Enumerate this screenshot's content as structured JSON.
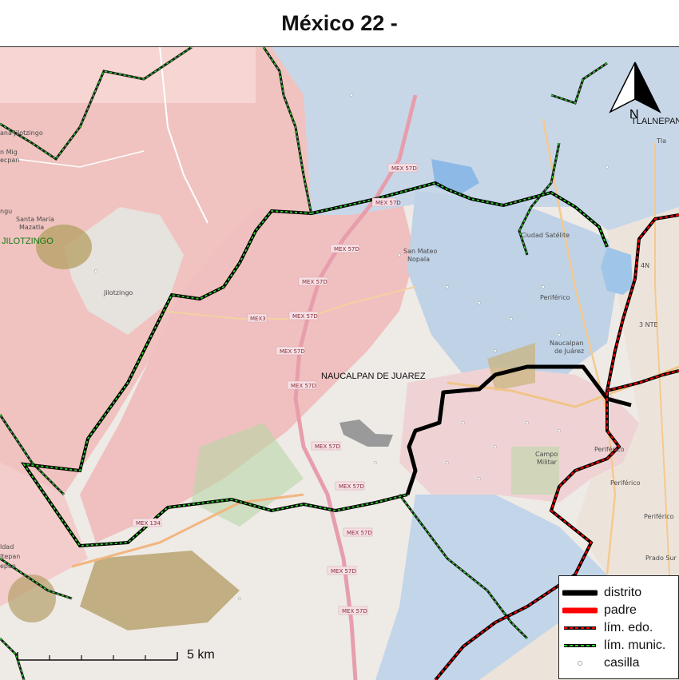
{
  "title": "México 22 -",
  "map": {
    "municipality_label": "NAUCALPAN DE JUAREZ",
    "jilotzingo_label": "JILOTZINGO",
    "tlalnepantla_label": "TLALNEPAN",
    "north_label": "N",
    "place_labels": [
      "ana Jilotzingo",
      "n Mig",
      "Mazatla",
      "ecpan",
      "ngu",
      "Santa María",
      "Mazatla",
      "Jilotzingo",
      "San Mateo",
      "Nopala",
      "Ciudad Satélite",
      "Periférico",
      "Naucalpan",
      "de Juárez",
      "Campo",
      "Militar",
      "Periférico",
      "Periférico",
      "Periférico",
      "Prado Sur",
      "Tla",
      "4N",
      "3 NTE",
      "ldad",
      "ltepan",
      "epan"
    ],
    "road_labels": [
      "MEX 57D",
      "MEX 57D",
      "MEX 57D",
      "MEX 57D",
      "MEX 57D",
      "MEX 57D",
      "MEX 57D",
      "MEX 57D",
      "MEX 57D",
      "MEX 57D",
      "MEX 57D",
      "MEX 57D",
      "MEX3",
      "MEX 134"
    ]
  },
  "scale": {
    "label": "5 km"
  },
  "legend": {
    "items": [
      {
        "label": "distrito",
        "color": "#000000",
        "style": "solid-thick"
      },
      {
        "label": "padre",
        "color": "#ff0000",
        "style": "solid-thick"
      },
      {
        "label": "lím. edo.",
        "color": "#ff0000",
        "style": "dashed-on-black"
      },
      {
        "label": "lím. munic.",
        "color": "#22cc22",
        "style": "dashed-on-black"
      },
      {
        "label": "casilla",
        "color": "#aaaaaa",
        "style": "circle"
      }
    ]
  },
  "colors": {
    "district_line": "#000000",
    "state_line": "#ff0000",
    "municipal_line": "#1fb81f",
    "pink_area": "#f2c6c6",
    "blue_area": "#c4d6ea",
    "forest": "#b5a06a"
  }
}
